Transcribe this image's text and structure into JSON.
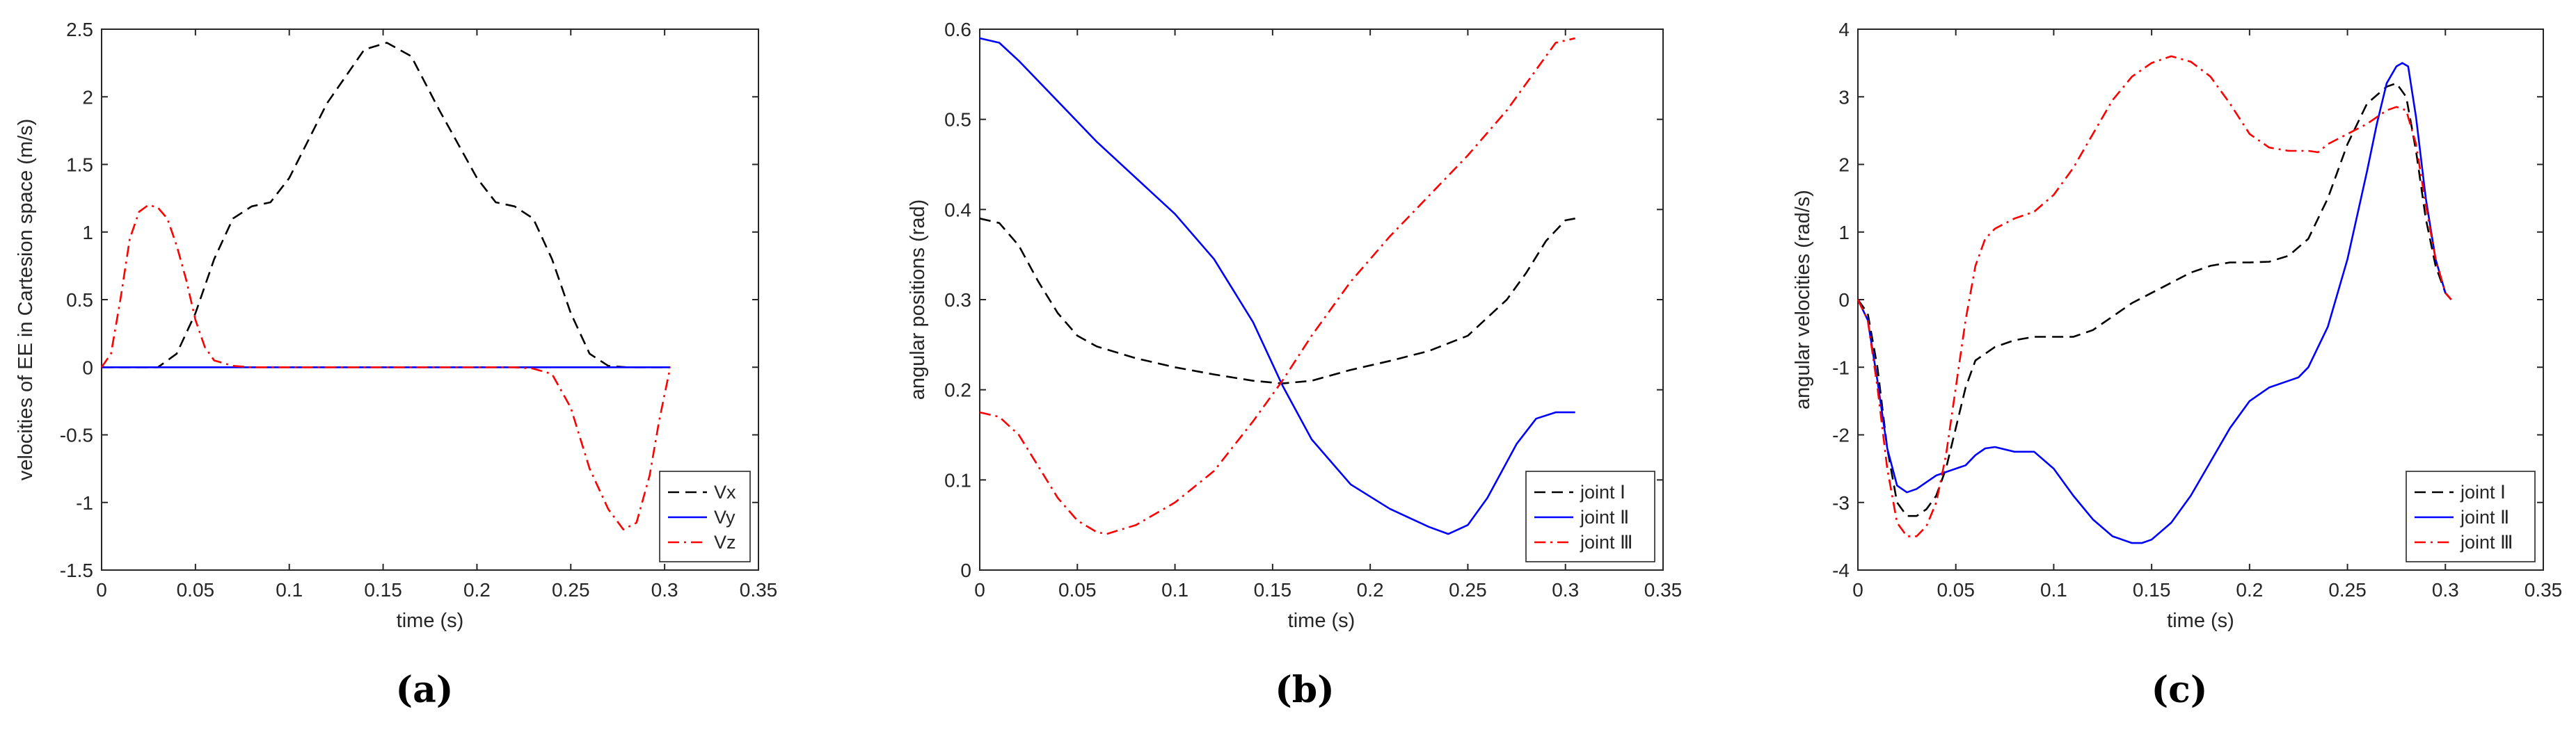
{
  "chart_data": [
    {
      "type": "line",
      "caption": "(a)",
      "xlabel": "time (s)",
      "ylabel": "velocities of EE in Cartesion space (m/s)",
      "xlim": [
        0,
        0.35
      ],
      "ylim": [
        -1.5,
        2.5
      ],
      "xticks": [
        "0",
        "0.05",
        "0.1",
        "0.15",
        "0.2",
        "0.25",
        "0.3",
        "0.35"
      ],
      "yticks": [
        "-1.5",
        "-1",
        "-0.5",
        "0",
        "0.5",
        "1",
        "1.5",
        "2",
        "2.5"
      ],
      "legend_position": "bottom-right",
      "series": [
        {
          "name": "Vx",
          "color": "#000000",
          "dash": "dashed",
          "points": [
            [
              0,
              0
            ],
            [
              0.03,
              0
            ],
            [
              0.04,
              0.1
            ],
            [
              0.05,
              0.4
            ],
            [
              0.06,
              0.8
            ],
            [
              0.07,
              1.1
            ],
            [
              0.08,
              1.19
            ],
            [
              0.09,
              1.22
            ],
            [
              0.1,
              1.4
            ],
            [
              0.12,
              1.95
            ],
            [
              0.14,
              2.35
            ],
            [
              0.152,
              2.4
            ],
            [
              0.165,
              2.3
            ],
            [
              0.18,
              1.9
            ],
            [
              0.2,
              1.4
            ],
            [
              0.21,
              1.22
            ],
            [
              0.22,
              1.19
            ],
            [
              0.23,
              1.1
            ],
            [
              0.24,
              0.8
            ],
            [
              0.25,
              0.4
            ],
            [
              0.26,
              0.1
            ],
            [
              0.27,
              0.01
            ],
            [
              0.28,
              0
            ],
            [
              0.303,
              0
            ]
          ]
        },
        {
          "name": "Vy",
          "color": "#0000ff",
          "dash": "solid",
          "points": [
            [
              0,
              0
            ],
            [
              0.1,
              0
            ],
            [
              0.2,
              0
            ],
            [
              0.303,
              0
            ]
          ]
        },
        {
          "name": "Vz",
          "color": "#ff0000",
          "dash": "dashdot",
          "points": [
            [
              0,
              0
            ],
            [
              0.005,
              0.1
            ],
            [
              0.01,
              0.5
            ],
            [
              0.015,
              0.95
            ],
            [
              0.02,
              1.15
            ],
            [
              0.025,
              1.2
            ],
            [
              0.03,
              1.18
            ],
            [
              0.035,
              1.1
            ],
            [
              0.04,
              0.9
            ],
            [
              0.045,
              0.65
            ],
            [
              0.05,
              0.35
            ],
            [
              0.055,
              0.15
            ],
            [
              0.06,
              0.05
            ],
            [
              0.07,
              0.01
            ],
            [
              0.08,
              0
            ],
            [
              0.2,
              0
            ],
            [
              0.22,
              0
            ],
            [
              0.23,
              -0.01
            ],
            [
              0.24,
              -0.05
            ],
            [
              0.25,
              -0.3
            ],
            [
              0.26,
              -0.75
            ],
            [
              0.27,
              -1.05
            ],
            [
              0.278,
              -1.2
            ],
            [
              0.285,
              -1.15
            ],
            [
              0.292,
              -0.8
            ],
            [
              0.297,
              -0.4
            ],
            [
              0.303,
              0
            ]
          ]
        }
      ]
    },
    {
      "type": "line",
      "caption": "(b)",
      "xlabel": "time (s)",
      "ylabel": "angular positions (rad)",
      "xlim": [
        0,
        0.35
      ],
      "ylim": [
        0,
        0.6
      ],
      "xticks": [
        "0",
        "0.05",
        "0.1",
        "0.15",
        "0.2",
        "0.25",
        "0.3",
        "0.35"
      ],
      "yticks": [
        "0",
        "0.1",
        "0.2",
        "0.3",
        "0.4",
        "0.5",
        "0.6"
      ],
      "legend_position": "bottom-right",
      "series": [
        {
          "name": "joint Ⅰ",
          "color": "#000000",
          "dash": "dashed",
          "points": [
            [
              0,
              0.39
            ],
            [
              0.01,
              0.385
            ],
            [
              0.02,
              0.36
            ],
            [
              0.03,
              0.32
            ],
            [
              0.04,
              0.285
            ],
            [
              0.05,
              0.26
            ],
            [
              0.06,
              0.248
            ],
            [
              0.08,
              0.235
            ],
            [
              0.1,
              0.225
            ],
            [
              0.12,
              0.217
            ],
            [
              0.14,
              0.21
            ],
            [
              0.155,
              0.207
            ],
            [
              0.17,
              0.21
            ],
            [
              0.19,
              0.222
            ],
            [
              0.21,
              0.232
            ],
            [
              0.23,
              0.243
            ],
            [
              0.25,
              0.26
            ],
            [
              0.27,
              0.3
            ],
            [
              0.28,
              0.33
            ],
            [
              0.29,
              0.365
            ],
            [
              0.3,
              0.388
            ],
            [
              0.305,
              0.39
            ]
          ]
        },
        {
          "name": "joint Ⅱ",
          "color": "#0000ff",
          "dash": "solid",
          "points": [
            [
              0,
              0.59
            ],
            [
              0.01,
              0.585
            ],
            [
              0.02,
              0.565
            ],
            [
              0.04,
              0.52
            ],
            [
              0.06,
              0.475
            ],
            [
              0.08,
              0.435
            ],
            [
              0.1,
              0.395
            ],
            [
              0.12,
              0.345
            ],
            [
              0.14,
              0.275
            ],
            [
              0.155,
              0.205
            ],
            [
              0.17,
              0.145
            ],
            [
              0.19,
              0.095
            ],
            [
              0.21,
              0.068
            ],
            [
              0.23,
              0.048
            ],
            [
              0.24,
              0.04
            ],
            [
              0.25,
              0.05
            ],
            [
              0.26,
              0.08
            ],
            [
              0.275,
              0.14
            ],
            [
              0.285,
              0.168
            ],
            [
              0.295,
              0.175
            ],
            [
              0.305,
              0.175
            ]
          ]
        },
        {
          "name": "joint Ⅲ",
          "color": "#ff0000",
          "dash": "dashdot",
          "points": [
            [
              0,
              0.175
            ],
            [
              0.01,
              0.17
            ],
            [
              0.02,
              0.15
            ],
            [
              0.03,
              0.115
            ],
            [
              0.04,
              0.08
            ],
            [
              0.05,
              0.055
            ],
            [
              0.06,
              0.042
            ],
            [
              0.065,
              0.04
            ],
            [
              0.08,
              0.05
            ],
            [
              0.1,
              0.075
            ],
            [
              0.12,
              0.11
            ],
            [
              0.14,
              0.165
            ],
            [
              0.155,
              0.21
            ],
            [
              0.17,
              0.26
            ],
            [
              0.19,
              0.32
            ],
            [
              0.21,
              0.37
            ],
            [
              0.23,
              0.415
            ],
            [
              0.25,
              0.46
            ],
            [
              0.27,
              0.51
            ],
            [
              0.285,
              0.555
            ],
            [
              0.295,
              0.585
            ],
            [
              0.305,
              0.59
            ]
          ]
        }
      ]
    },
    {
      "type": "line",
      "caption": "(c)",
      "xlabel": "time (s)",
      "ylabel": "angular velocities (rad/s)",
      "xlim": [
        0,
        0.35
      ],
      "ylim": [
        -4,
        4
      ],
      "xticks": [
        "0",
        "0.05",
        "0.1",
        "0.15",
        "0.2",
        "0.25",
        "0.3",
        "0.35"
      ],
      "yticks": [
        "-4",
        "-3",
        "-2",
        "-1",
        "0",
        "1",
        "2",
        "3",
        "4"
      ],
      "legend_position": "bottom-right",
      "series": [
        {
          "name": "joint Ⅰ",
          "color": "#000000",
          "dash": "dashed",
          "points": [
            [
              0,
              0
            ],
            [
              0.005,
              -0.2
            ],
            [
              0.01,
              -1.0
            ],
            [
              0.015,
              -2.2
            ],
            [
              0.02,
              -3.0
            ],
            [
              0.025,
              -3.2
            ],
            [
              0.03,
              -3.2
            ],
            [
              0.035,
              -3.1
            ],
            [
              0.04,
              -2.9
            ],
            [
              0.045,
              -2.5
            ],
            [
              0.05,
              -1.9
            ],
            [
              0.055,
              -1.3
            ],
            [
              0.06,
              -0.9
            ],
            [
              0.07,
              -0.7
            ],
            [
              0.08,
              -0.6
            ],
            [
              0.09,
              -0.55
            ],
            [
              0.1,
              -0.55
            ],
            [
              0.11,
              -0.55
            ],
            [
              0.12,
              -0.45
            ],
            [
              0.13,
              -0.25
            ],
            [
              0.14,
              -0.05
            ],
            [
              0.15,
              0.1
            ],
            [
              0.16,
              0.25
            ],
            [
              0.17,
              0.4
            ],
            [
              0.18,
              0.5
            ],
            [
              0.19,
              0.55
            ],
            [
              0.2,
              0.55
            ],
            [
              0.21,
              0.56
            ],
            [
              0.22,
              0.65
            ],
            [
              0.23,
              0.9
            ],
            [
              0.24,
              1.5
            ],
            [
              0.25,
              2.3
            ],
            [
              0.26,
              2.9
            ],
            [
              0.27,
              3.15
            ],
            [
              0.275,
              3.2
            ],
            [
              0.28,
              3.0
            ],
            [
              0.285,
              2.2
            ],
            [
              0.29,
              1.2
            ],
            [
              0.295,
              0.5
            ],
            [
              0.3,
              0.1
            ],
            [
              0.303,
              0
            ]
          ]
        },
        {
          "name": "joint Ⅱ",
          "color": "#0000ff",
          "dash": "solid",
          "points": [
            [
              0,
              0
            ],
            [
              0.005,
              -0.3
            ],
            [
              0.01,
              -1.2
            ],
            [
              0.015,
              -2.2
            ],
            [
              0.02,
              -2.75
            ],
            [
              0.025,
              -2.85
            ],
            [
              0.03,
              -2.8
            ],
            [
              0.035,
              -2.7
            ],
            [
              0.04,
              -2.6
            ],
            [
              0.05,
              -2.5
            ],
            [
              0.055,
              -2.45
            ],
            [
              0.06,
              -2.3
            ],
            [
              0.065,
              -2.2
            ],
            [
              0.07,
              -2.18
            ],
            [
              0.08,
              -2.25
            ],
            [
              0.09,
              -2.25
            ],
            [
              0.1,
              -2.5
            ],
            [
              0.11,
              -2.9
            ],
            [
              0.12,
              -3.25
            ],
            [
              0.13,
              -3.5
            ],
            [
              0.14,
              -3.6
            ],
            [
              0.145,
              -3.6
            ],
            [
              0.15,
              -3.55
            ],
            [
              0.16,
              -3.3
            ],
            [
              0.17,
              -2.9
            ],
            [
              0.18,
              -2.4
            ],
            [
              0.19,
              -1.9
            ],
            [
              0.2,
              -1.5
            ],
            [
              0.21,
              -1.3
            ],
            [
              0.22,
              -1.2
            ],
            [
              0.225,
              -1.15
            ],
            [
              0.23,
              -1.0
            ],
            [
              0.24,
              -0.4
            ],
            [
              0.25,
              0.6
            ],
            [
              0.26,
              1.9
            ],
            [
              0.265,
              2.6
            ],
            [
              0.27,
              3.2
            ],
            [
              0.275,
              3.45
            ],
            [
              0.278,
              3.5
            ],
            [
              0.281,
              3.45
            ],
            [
              0.285,
              2.7
            ],
            [
              0.29,
              1.5
            ],
            [
              0.295,
              0.6
            ],
            [
              0.3,
              0.1
            ],
            [
              0.303,
              0
            ]
          ]
        },
        {
          "name": "joint Ⅲ",
          "color": "#ff0000",
          "dash": "dashdot",
          "points": [
            [
              0,
              0
            ],
            [
              0.005,
              -0.3
            ],
            [
              0.01,
              -1.3
            ],
            [
              0.015,
              -2.5
            ],
            [
              0.02,
              -3.3
            ],
            [
              0.025,
              -3.5
            ],
            [
              0.03,
              -3.5
            ],
            [
              0.035,
              -3.35
            ],
            [
              0.04,
              -3.0
            ],
            [
              0.045,
              -2.3
            ],
            [
              0.05,
              -1.3
            ],
            [
              0.055,
              -0.3
            ],
            [
              0.06,
              0.5
            ],
            [
              0.065,
              0.9
            ],
            [
              0.07,
              1.05
            ],
            [
              0.08,
              1.2
            ],
            [
              0.09,
              1.3
            ],
            [
              0.1,
              1.55
            ],
            [
              0.11,
              1.95
            ],
            [
              0.12,
              2.45
            ],
            [
              0.13,
              2.95
            ],
            [
              0.14,
              3.3
            ],
            [
              0.15,
              3.5
            ],
            [
              0.16,
              3.6
            ],
            [
              0.17,
              3.52
            ],
            [
              0.18,
              3.3
            ],
            [
              0.19,
              2.9
            ],
            [
              0.2,
              2.45
            ],
            [
              0.21,
              2.25
            ],
            [
              0.22,
              2.2
            ],
            [
              0.23,
              2.2
            ],
            [
              0.235,
              2.18
            ],
            [
              0.24,
              2.3
            ],
            [
              0.25,
              2.45
            ],
            [
              0.26,
              2.6
            ],
            [
              0.27,
              2.8
            ],
            [
              0.275,
              2.85
            ],
            [
              0.28,
              2.8
            ],
            [
              0.285,
              2.3
            ],
            [
              0.29,
              1.4
            ],
            [
              0.295,
              0.6
            ],
            [
              0.3,
              0.1
            ],
            [
              0.303,
              0
            ]
          ]
        }
      ]
    }
  ]
}
